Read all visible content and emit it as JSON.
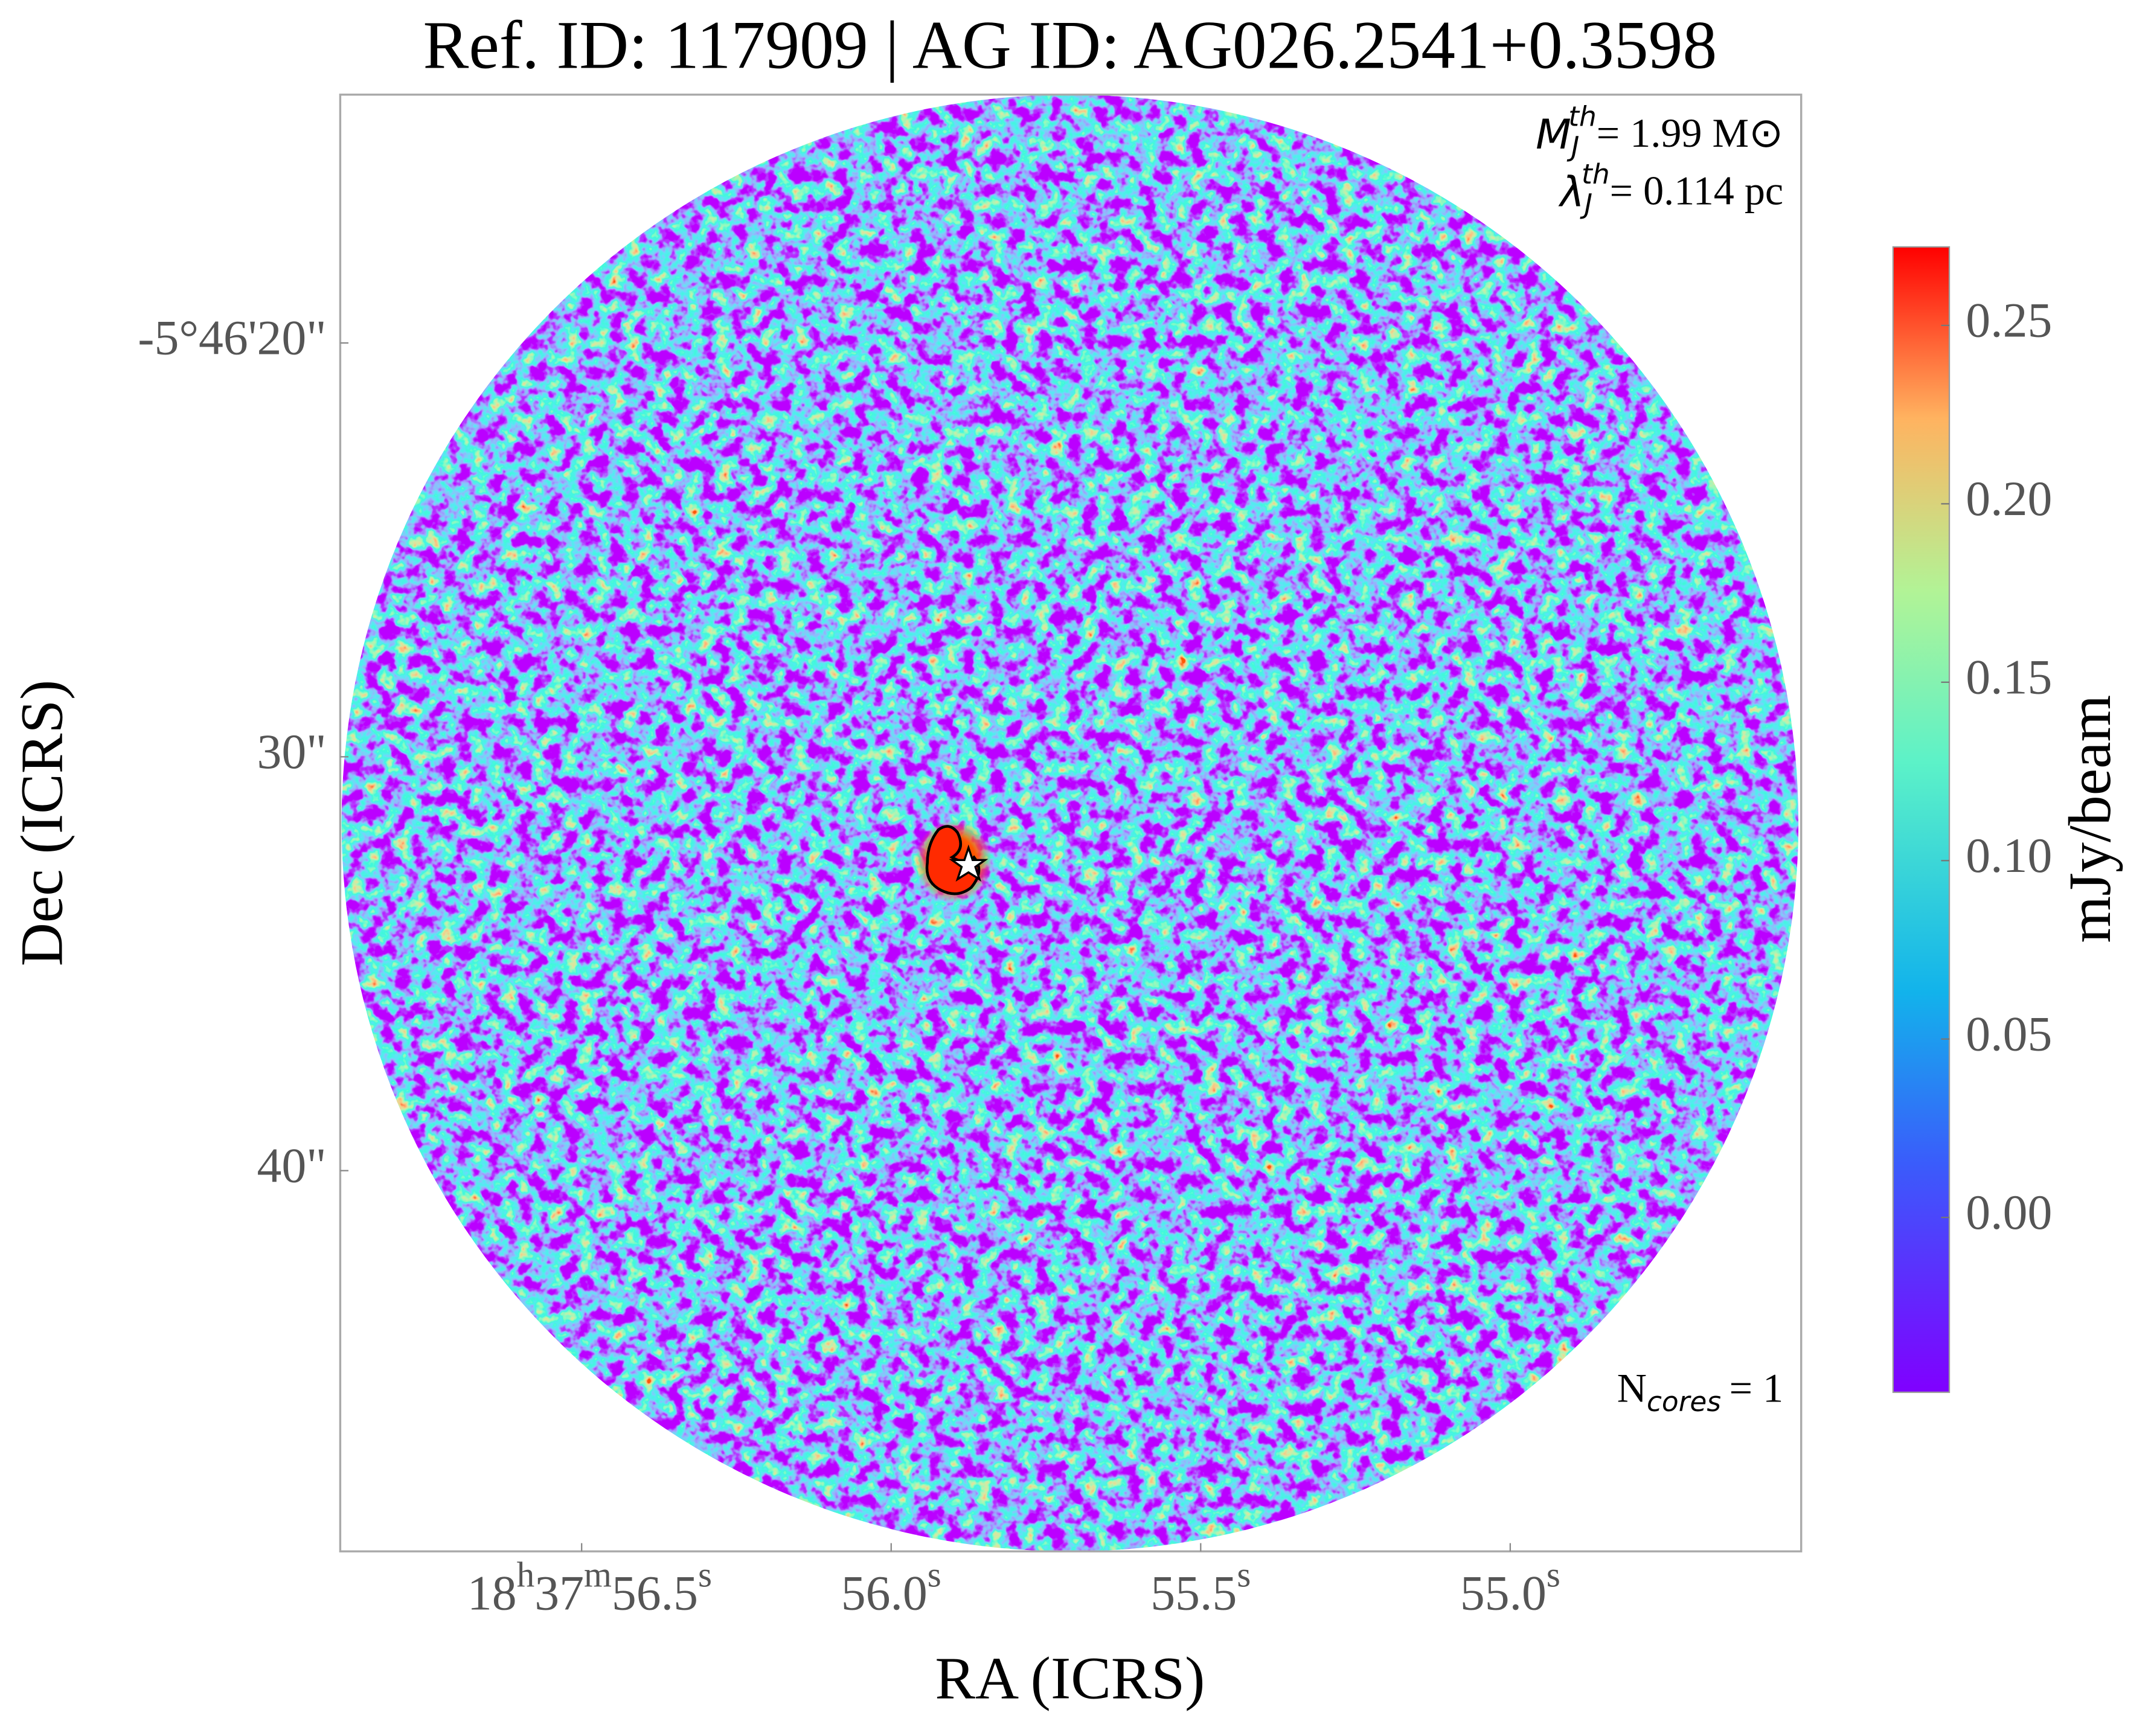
{
  "chart_data": {
    "type": "image",
    "title": "Ref. ID: 117909 | AG ID: AG026.2541+0.3598",
    "x_label": "RA (ICRS)",
    "y_label": "Dec (ICRS)",
    "xlim": [
      56.89,
      54.53
    ],
    "xticks": [
      {
        "value": 56.5,
        "label": "18h37m56.5s"
      },
      {
        "value": 56.0,
        "label": "56.0s"
      },
      {
        "value": 55.5,
        "label": "55.5s"
      },
      {
        "value": 55.0,
        "label": "55.0s"
      }
    ],
    "ylim": [
      14,
      49.2
    ],
    "yticks": [
      {
        "value": 20,
        "label": "-5°46'20\""
      },
      {
        "value": 30,
        "label": "30\""
      },
      {
        "value": 40,
        "label": "40\""
      }
    ],
    "colorbar": {
      "label": "mJy/beam",
      "colormap": "rainbow",
      "clim": [
        -0.049,
        0.272
      ],
      "ticks": [
        {
          "value": 0,
          "label": "0.00"
        },
        {
          "value": 0.05,
          "label": "0.05"
        },
        {
          "value": 0.1,
          "label": "0.10"
        },
        {
          "value": 0.15,
          "label": "0.15"
        },
        {
          "value": 0.2,
          "label": "0.20"
        },
        {
          "value": 0.25,
          "label": "0.25"
        }
      ]
    },
    "annotations": [
      {
        "symbol": "M",
        "subscript": "J",
        "superscript": "th",
        "text": "= 1.99 M⊙"
      },
      {
        "symbol": "λ",
        "subscript": "J",
        "superscript": "th",
        "text": "= 0.114 pc"
      },
      {
        "symbol": "N",
        "subscript": "cores",
        "text": "= 1"
      }
    ]
  }
}
